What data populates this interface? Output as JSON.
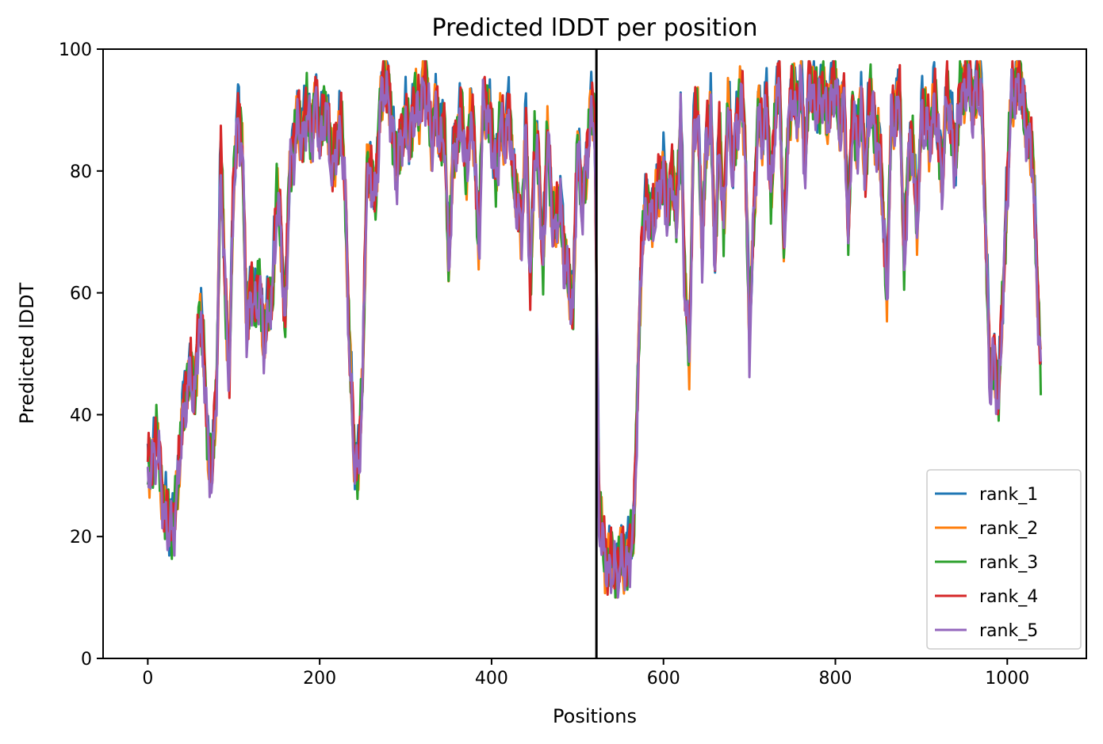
{
  "chart_data": {
    "type": "line",
    "title": "Predicted lDDT per position",
    "xlabel": "Positions",
    "ylabel": "Predicted lDDT",
    "xlim": [
      -52,
      1092
    ],
    "ylim": [
      0,
      100
    ],
    "x_ticks": [
      0,
      200,
      400,
      600,
      800,
      1000
    ],
    "y_ticks": [
      0,
      20,
      40,
      60,
      80,
      100
    ],
    "vline_x": 522,
    "legend_position": "lower-right",
    "x_range": [
      0,
      1039
    ],
    "keypoints": {
      "x": [
        0,
        5,
        10,
        15,
        20,
        25,
        30,
        35,
        40,
        45,
        50,
        55,
        60,
        65,
        70,
        75,
        80,
        85,
        90,
        95,
        100,
        105,
        110,
        115,
        120,
        125,
        130,
        135,
        140,
        145,
        150,
        155,
        160,
        165,
        170,
        175,
        180,
        185,
        190,
        195,
        200,
        205,
        210,
        215,
        220,
        225,
        230,
        235,
        240,
        245,
        250,
        255,
        260,
        265,
        270,
        275,
        280,
        285,
        290,
        295,
        300,
        305,
        310,
        315,
        320,
        325,
        330,
        335,
        340,
        345,
        350,
        355,
        360,
        365,
        370,
        375,
        380,
        385,
        390,
        395,
        400,
        405,
        410,
        415,
        420,
        425,
        430,
        435,
        440,
        445,
        450,
        455,
        460,
        465,
        470,
        475,
        480,
        485,
        490,
        495,
        500,
        505,
        510,
        515,
        520,
        525,
        530,
        535,
        540,
        545,
        550,
        555,
        560,
        565,
        570,
        575,
        580,
        585,
        590,
        595,
        600,
        605,
        610,
        615,
        620,
        625,
        630,
        635,
        640,
        645,
        650,
        655,
        660,
        665,
        670,
        675,
        680,
        685,
        690,
        695,
        700,
        705,
        710,
        715,
        720,
        725,
        730,
        735,
        740,
        745,
        750,
        755,
        760,
        765,
        770,
        775,
        780,
        785,
        790,
        795,
        800,
        805,
        810,
        815,
        820,
        825,
        830,
        835,
        840,
        845,
        850,
        855,
        860,
        865,
        870,
        875,
        880,
        885,
        890,
        895,
        900,
        905,
        910,
        915,
        920,
        925,
        930,
        935,
        940,
        945,
        950,
        955,
        960,
        965,
        970,
        975,
        980,
        985,
        990,
        995,
        1000,
        1005,
        1010,
        1015,
        1020,
        1025,
        1030,
        1035,
        1039
      ],
      "y": [
        30,
        33,
        36,
        30,
        24,
        21,
        23,
        28,
        40,
        43,
        48,
        43,
        57,
        50,
        35,
        30,
        45,
        83,
        60,
        48,
        78,
        90,
        83,
        55,
        60,
        58,
        62,
        52,
        57,
        60,
        76,
        70,
        55,
        80,
        85,
        88,
        86,
        90,
        86,
        92,
        85,
        90,
        88,
        80,
        85,
        88,
        75,
        50,
        33,
        32,
        45,
        82,
        78,
        76,
        90,
        95,
        93,
        86,
        80,
        86,
        88,
        85,
        92,
        89,
        95,
        92,
        86,
        90,
        85,
        88,
        65,
        82,
        85,
        90,
        80,
        88,
        85,
        68,
        90,
        92,
        85,
        80,
        88,
        85,
        90,
        80,
        75,
        70,
        88,
        60,
        85,
        80,
        65,
        86,
        75,
        70,
        76,
        65,
        62,
        58,
        85,
        75,
        80,
        90,
        88,
        25,
        18,
        16,
        15,
        15,
        16,
        16,
        17,
        20,
        45,
        68,
        75,
        72,
        74,
        78,
        80,
        72,
        82,
        70,
        90,
        60,
        50,
        86,
        90,
        68,
        85,
        90,
        65,
        88,
        70,
        92,
        80,
        88,
        92,
        86,
        52,
        72,
        90,
        85,
        92,
        75,
        90,
        95,
        68,
        86,
        95,
        88,
        96,
        80,
        97,
        92,
        90,
        95,
        88,
        93,
        94,
        88,
        92,
        70,
        90,
        85,
        90,
        80,
        92,
        88,
        85,
        75,
        60,
        88,
        90,
        92,
        65,
        82,
        85,
        70,
        90,
        88,
        86,
        92,
        85,
        80,
        93,
        88,
        80,
        95,
        92,
        96,
        90,
        95,
        92,
        70,
        45,
        50,
        42,
        60,
        78,
        92,
        95,
        94,
        90,
        85,
        82,
        60,
        48
      ]
    },
    "series": [
      {
        "name": "rank_1",
        "color": "#1f77b4"
      },
      {
        "name": "rank_2",
        "color": "#ff7f0e"
      },
      {
        "name": "rank_3",
        "color": "#2ca02c"
      },
      {
        "name": "rank_4",
        "color": "#d62728"
      },
      {
        "name": "rank_5",
        "color": "#9467bd"
      }
    ]
  }
}
